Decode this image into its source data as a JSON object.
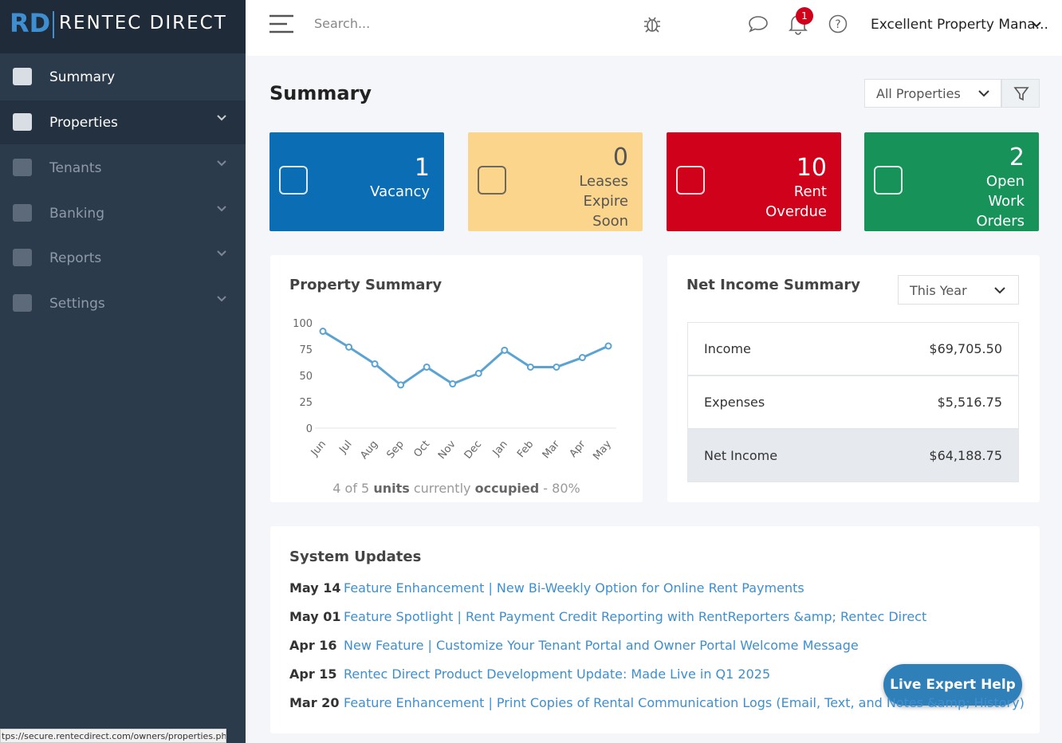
{
  "logo": {
    "mark": "RD",
    "text": "RENTEC DIRECT"
  },
  "nav": [
    {
      "label": "Summary"
    },
    {
      "label": "Properties"
    },
    {
      "label": "Tenants"
    },
    {
      "label": "Banking"
    },
    {
      "label": "Reports"
    },
    {
      "label": "Settings"
    }
  ],
  "topbar": {
    "search": "Search...",
    "notifications": "1",
    "account": "Excellent Property Mana..."
  },
  "page": {
    "title": "Summary",
    "property_filter": "All Properties"
  },
  "cards": [
    {
      "value": "1",
      "label": "Vacancy"
    },
    {
      "value": "0",
      "label": "Leases Expire Soon"
    },
    {
      "value": "10",
      "label": "Rent Overdue"
    },
    {
      "value": "2",
      "label": "Open Work Orders"
    }
  ],
  "property_summary": {
    "title": "Property Summary",
    "chart": {
      "type": "line",
      "categories": [
        "Jun",
        "Jul",
        "Aug",
        "Sep",
        "Oct",
        "Nov",
        "Dec",
        "Jan",
        "Feb",
        "Mar",
        "Apr",
        "May"
      ],
      "values": [
        92,
        77,
        61,
        41,
        58,
        42,
        52,
        74,
        58,
        58,
        67,
        78
      ],
      "color": "#5ba3d3",
      "ylim": [
        0,
        100
      ],
      "yticks": [
        0,
        25,
        50,
        75,
        100
      ]
    },
    "occupancy": {
      "count": "4 of 5",
      "unit_word": "units",
      "middle": "currently",
      "status_word": "occupied",
      "percent": "- 80%"
    }
  },
  "net_income": {
    "title": "Net Income Summary",
    "period": "This Year",
    "rows": [
      [
        "Income",
        "$69,705.50"
      ],
      [
        "Expenses",
        "$5,516.75"
      ],
      [
        "Net Income",
        "$64,188.75"
      ]
    ]
  },
  "system_updates": {
    "title": "System Updates",
    "items": [
      [
        "May 14",
        "Feature Enhancement | New Bi-Weekly Option for Online Rent Payments"
      ],
      [
        "May 01",
        "Feature Spotlight | Rent Payment Credit Reporting with RentReporters &amp; Rentec Direct"
      ],
      [
        "Apr 16",
        "New Feature | Customize Your Tenant Portal and Owner Portal Welcome Message"
      ],
      [
        "Apr 15",
        "Rentec Direct Product Development Update: Made Live in Q1 2025"
      ],
      [
        "Mar 20",
        "Feature Enhancement | Print Copies of Rental Communication Logs (Email, Text, and Notes &amp; History)"
      ]
    ]
  },
  "help_button": "Live Expert Help",
  "status_url": "tps://secure.rentecdirect.com/owners/properties.php"
}
